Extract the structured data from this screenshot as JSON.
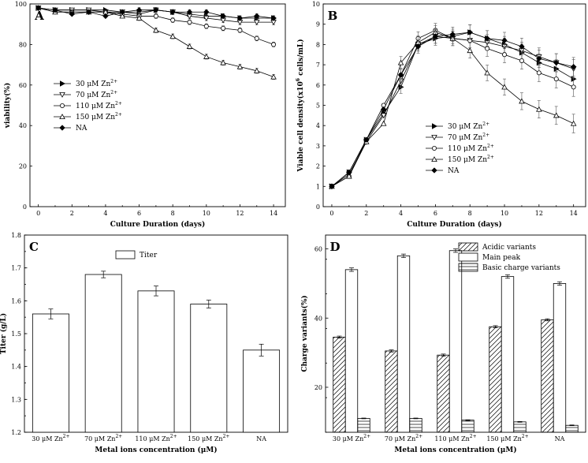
{
  "chart_data": [
    {
      "panel": "A",
      "type": "line",
      "xlabel": "Culture Duration (days)",
      "ylabel": "viability(%)",
      "xlim": [
        -0.5,
        14.7
      ],
      "ylim": [
        0,
        100
      ],
      "xticks": [
        "0",
        "2",
        "4",
        "6",
        "8",
        "10",
        "12",
        "14"
      ],
      "yticks": [
        "0",
        "20",
        "40",
        "60",
        "80",
        "100"
      ],
      "x": [
        0,
        1,
        2,
        3,
        4,
        5,
        6,
        7,
        8,
        9,
        10,
        11,
        12,
        13,
        14
      ],
      "legend_position": "middle-left",
      "series": [
        {
          "name": "30 μM Zn",
          "sup": "2+",
          "marker": "tri-right",
          "values": [
            98,
            97,
            97,
            97,
            97,
            96,
            95,
            97,
            96,
            95,
            94,
            94,
            93,
            93,
            93
          ]
        },
        {
          "name": "70 μM Zn",
          "sup": "2+",
          "marker": "tri-down",
          "values": [
            98,
            97,
            97,
            97,
            96,
            96,
            96,
            97,
            96,
            94,
            93,
            92,
            91,
            91,
            91
          ]
        },
        {
          "name": "110 μM Zn",
          "sup": "2+",
          "marker": "circle",
          "values": [
            98,
            96,
            96,
            96,
            96,
            95,
            94,
            94,
            92,
            91,
            89,
            88,
            87,
            83,
            80
          ]
        },
        {
          "name": "150 μM Zn",
          "sup": "2+",
          "marker": "tri-up",
          "values": [
            98,
            96,
            96,
            96,
            96,
            94,
            93,
            87,
            84,
            79,
            74,
            71,
            69,
            67,
            64
          ]
        },
        {
          "name": "NA",
          "sup": "",
          "marker": "diamond",
          "values": [
            98,
            97,
            95,
            96,
            94,
            96,
            97,
            97,
            96,
            96,
            96,
            94,
            93,
            94,
            93
          ]
        }
      ]
    },
    {
      "panel": "B",
      "type": "line",
      "xlabel": "Culture Duration (days)",
      "ylabel": "Viable cell density(x10^6 cells/mL)",
      "xlim": [
        -0.5,
        14.7
      ],
      "ylim": [
        0,
        10
      ],
      "xticks": [
        "0",
        "2",
        "4",
        "6",
        "8",
        "10",
        "12",
        "14"
      ],
      "yticks": [
        "0",
        "1",
        "2",
        "3",
        "4",
        "5",
        "6",
        "7",
        "8",
        "9",
        "10"
      ],
      "x": [
        0,
        1,
        2,
        3,
        4,
        5,
        6,
        7,
        8,
        9,
        10,
        11,
        12,
        13,
        14
      ],
      "legend_position": "bottom-left",
      "series": [
        {
          "name": "30 μM Zn",
          "sup": "2+",
          "marker": "tri-right",
          "values": [
            1.0,
            1.7,
            3.3,
            4.6,
            5.9,
            8.0,
            8.3,
            8.4,
            8.6,
            8.3,
            8.0,
            7.6,
            7.1,
            6.8,
            6.3
          ]
        },
        {
          "name": "70 μM Zn",
          "sup": "2+",
          "marker": "tri-down",
          "values": [
            1.0,
            1.6,
            3.2,
            4.5,
            6.2,
            8.0,
            8.4,
            8.3,
            8.2,
            8.1,
            7.9,
            7.7,
            7.4,
            7.1,
            6.8
          ]
        },
        {
          "name": "110 μM Zn",
          "sup": "2+",
          "marker": "circle",
          "values": [
            1.0,
            1.5,
            3.3,
            5.0,
            6.5,
            8.3,
            8.7,
            8.3,
            8.2,
            7.8,
            7.5,
            7.2,
            6.6,
            6.3,
            5.9
          ]
        },
        {
          "name": "150 μM Zn",
          "sup": "2+",
          "marker": "tri-up",
          "values": [
            1.0,
            1.5,
            3.2,
            4.1,
            7.1,
            8.1,
            8.6,
            8.3,
            7.7,
            6.6,
            5.9,
            5.2,
            4.8,
            4.5,
            4.1
          ]
        },
        {
          "name": "NA",
          "sup": "",
          "marker": "diamond",
          "values": [
            1.0,
            1.7,
            3.3,
            4.8,
            6.5,
            7.9,
            8.4,
            8.5,
            8.6,
            8.3,
            8.2,
            7.9,
            7.3,
            7.1,
            6.9
          ]
        }
      ]
    },
    {
      "panel": "C",
      "type": "bar",
      "xlabel": "Metal ions concentration (μM)",
      "ylabel": "Titer (g/L)",
      "ylim": [
        1.2,
        1.8
      ],
      "yticks": [
        "1.2",
        "1.3",
        "1.4",
        "1.5",
        "1.6",
        "1.7",
        "1.8"
      ],
      "legend_position": "top-center",
      "categories": [
        {
          "name": "30 μM Zn",
          "sup": "2+"
        },
        {
          "name": "70 μM Zn",
          "sup": "2+"
        },
        {
          "name": "110 μM Zn",
          "sup": "2+"
        },
        {
          "name": "150 μM Zn",
          "sup": "2+"
        },
        {
          "name": "NA",
          "sup": ""
        }
      ],
      "series": [
        {
          "name": "Titer",
          "values": [
            1.56,
            1.68,
            1.63,
            1.59,
            1.45
          ],
          "errors": [
            0.015,
            0.01,
            0.015,
            0.012,
            0.018
          ]
        }
      ]
    },
    {
      "panel": "D",
      "type": "bar",
      "xlabel": "Metal ions concentration (μM)",
      "ylabel": "Charge variants(%)",
      "ylim": [
        7,
        64
      ],
      "yticks": [
        "20",
        "40",
        "60"
      ],
      "legend_position": "top-right",
      "categories": [
        {
          "name": "30 μM Zn",
          "sup": "2+"
        },
        {
          "name": "70 μM Zn",
          "sup": "2+"
        },
        {
          "name": "110 μM Zn",
          "sup": "2+"
        },
        {
          "name": "150 μM Zn",
          "sup": "2+"
        },
        {
          "name": "NA",
          "sup": ""
        }
      ],
      "series": [
        {
          "name": "Acidic variants",
          "pattern": "diagonal",
          "values": [
            34.5,
            30.5,
            29.3,
            37.5,
            39.5
          ],
          "errors": [
            0.3,
            0.3,
            0.3,
            0.3,
            0.3
          ]
        },
        {
          "name": "Main peak",
          "pattern": "none",
          "values": [
            54.0,
            58.0,
            59.5,
            52.0,
            50.0
          ],
          "errors": [
            0.5,
            0.5,
            0.5,
            0.5,
            0.5
          ]
        },
        {
          "name": "Basic charge variants",
          "pattern": "horizontal",
          "values": [
            11.0,
            11.0,
            10.5,
            10.0,
            9.0
          ],
          "errors": [
            0.1,
            0.1,
            0.1,
            0.1,
            0.1
          ]
        }
      ]
    }
  ]
}
